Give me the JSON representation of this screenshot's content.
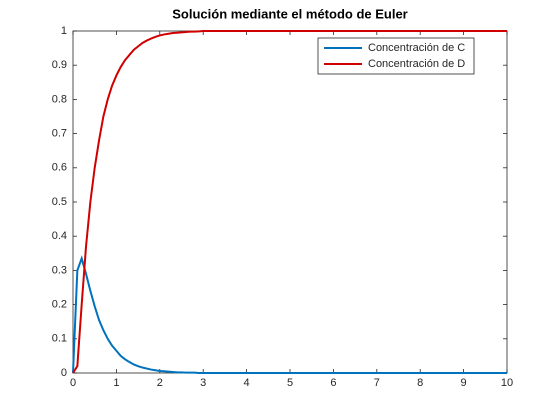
{
  "chart_data": {
    "type": "line",
    "title": "Solución mediante el método de Euler",
    "x": [
      0,
      0.1,
      0.2,
      0.3,
      0.4,
      0.5,
      0.6,
      0.7,
      0.8,
      0.9,
      1,
      1.1,
      1.2,
      1.3,
      1.4,
      1.5,
      1.6,
      1.7,
      1.8,
      1.9,
      2,
      2.1,
      2.2,
      2.3,
      2.4,
      2.5,
      2.6,
      2.7,
      2.8,
      2.9,
      3,
      10
    ],
    "series": [
      {
        "name": "Concentración de C",
        "color": "#0072bd",
        "values": [
          0,
          0.3,
          0.335,
          0.29,
          0.24,
          0.195,
          0.155,
          0.125,
          0.1,
          0.08,
          0.065,
          0.05,
          0.04,
          0.032,
          0.025,
          0.02,
          0.016,
          0.013,
          0.01,
          0.008,
          0.006,
          0.005,
          0.004,
          0.003,
          0.002,
          0.002,
          0.001,
          0.001,
          0.001,
          0,
          0,
          0
        ]
      },
      {
        "name": "Concentración de D",
        "color": "#d00000",
        "values": [
          0,
          0.02,
          0.2,
          0.37,
          0.5,
          0.6,
          0.68,
          0.75,
          0.8,
          0.84,
          0.87,
          0.895,
          0.915,
          0.93,
          0.945,
          0.955,
          0.965,
          0.972,
          0.978,
          0.983,
          0.987,
          0.99,
          0.992,
          0.994,
          0.995,
          0.996,
          0.997,
          0.998,
          0.998,
          0.999,
          1,
          1
        ]
      }
    ],
    "xlim": [
      0,
      10
    ],
    "xticks": [
      0,
      1,
      2,
      3,
      4,
      5,
      6,
      7,
      8,
      9,
      10
    ],
    "ylim": [
      0,
      1
    ],
    "yticks": [
      0,
      0.1,
      0.2,
      0.3,
      0.4,
      0.5,
      0.6,
      0.7,
      0.8,
      0.9,
      1
    ],
    "legend": "top-right"
  }
}
